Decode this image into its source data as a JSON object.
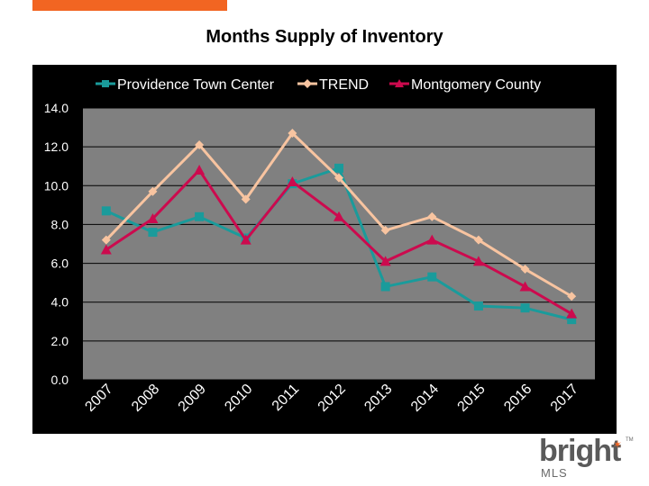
{
  "header": {
    "accent_color": "#f26522"
  },
  "chart_data": {
    "type": "line",
    "title": "Months Supply of Inventory",
    "categories": [
      "2007",
      "2008",
      "2009",
      "2010",
      "2011",
      "2012",
      "2013",
      "2014",
      "2015",
      "2016",
      "2017"
    ],
    "ylim": [
      0,
      14
    ],
    "yticks": [
      "0.0",
      "2.0",
      "4.0",
      "6.0",
      "8.0",
      "10.0",
      "12.0",
      "14.0"
    ],
    "ytick_values": [
      0,
      2,
      4,
      6,
      8,
      10,
      12,
      14
    ],
    "grid": true,
    "legend_position": "top",
    "plot_background": "#808080",
    "frame_background": "#000000",
    "series": [
      {
        "name": "Providence Town Center",
        "color": "#1a9b9b",
        "marker": "square",
        "values": [
          8.7,
          7.6,
          8.4,
          7.3,
          10.1,
          10.9,
          4.8,
          5.3,
          3.8,
          3.7,
          3.1
        ]
      },
      {
        "name": "TREND",
        "color": "#f8c4a0",
        "marker": "diamond",
        "values": [
          7.2,
          9.7,
          12.1,
          9.3,
          12.7,
          10.4,
          7.7,
          8.4,
          7.2,
          5.7,
          4.3
        ]
      },
      {
        "name": "Montgomery County",
        "color": "#cc0a4e",
        "marker": "triangle",
        "values": [
          6.7,
          8.3,
          10.8,
          7.2,
          10.2,
          8.4,
          6.1,
          7.2,
          6.1,
          4.8,
          3.4
        ]
      }
    ]
  },
  "logo": {
    "name": "bright",
    "sub": "MLS",
    "tm": "TM"
  }
}
